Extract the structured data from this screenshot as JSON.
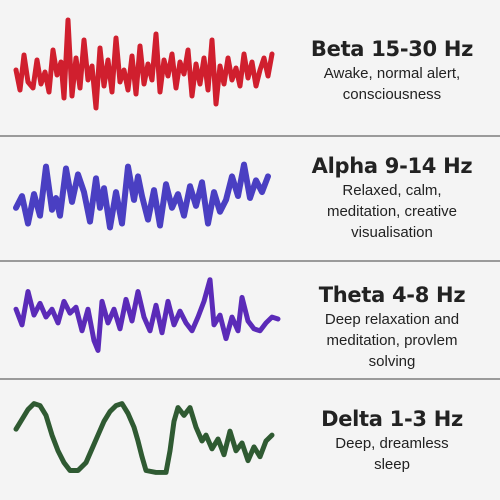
{
  "bands": [
    {
      "title": "Beta 15-30 Hz",
      "desc_lines": [
        "Awake, normal alert,",
        "consciousness"
      ],
      "color": "#d01f2e",
      "wave_icon": "high-frequency-wave-icon"
    },
    {
      "title": "Alpha 9-14 Hz",
      "desc_lines": [
        "Relaxed, calm,",
        "meditation, creative",
        "visualisation"
      ],
      "color": "#4a3fc2",
      "wave_icon": "medium-frequency-wave-icon"
    },
    {
      "title": "Theta 4-8 Hz",
      "desc_lines": [
        "Deep relaxation and",
        "meditation, provlem",
        "solving"
      ],
      "color": "#5b2bb8",
      "wave_icon": "low-frequency-wave-icon"
    },
    {
      "title": "Delta 1-3 Hz",
      "desc_lines": [
        "Deep, dreamless",
        "sleep"
      ],
      "color": "#2f5a32",
      "wave_icon": "very-low-frequency-wave-icon"
    }
  ]
}
